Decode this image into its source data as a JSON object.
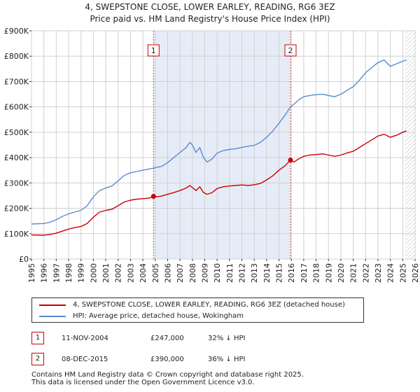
{
  "title_line1": "4, SWEPSTONE CLOSE, LOWER EARLEY, READING, RG6 3EZ",
  "title_line2": "Price paid vs. HM Land Registry's House Price Index (HPI)",
  "chart_data": {
    "type": "line",
    "title": "4, SWEPSTONE CLOSE, LOWER EARLEY, READING, RG6 3EZ — Price paid vs. HM Land Registry's House Price Index (HPI)",
    "xlim": [
      1995,
      2026
    ],
    "ylim": [
      0,
      900000
    ],
    "yticks": [
      {
        "value": 0,
        "label": "£0"
      },
      {
        "value": 100000,
        "label": "£100K"
      },
      {
        "value": 200000,
        "label": "£200K"
      },
      {
        "value": 300000,
        "label": "£300K"
      },
      {
        "value": 400000,
        "label": "£400K"
      },
      {
        "value": 500000,
        "label": "£500K"
      },
      {
        "value": 600000,
        "label": "£600K"
      },
      {
        "value": 700000,
        "label": "£700K"
      },
      {
        "value": 800000,
        "label": "£800K"
      },
      {
        "value": 900000,
        "label": "£900K"
      }
    ],
    "xticks": [
      "1995",
      "1996",
      "1997",
      "1998",
      "1999",
      "2000",
      "2001",
      "2002",
      "2003",
      "2004",
      "2005",
      "2006",
      "2007",
      "2008",
      "2009",
      "2010",
      "2011",
      "2012",
      "2013",
      "2014",
      "2015",
      "2016",
      "2017",
      "2018",
      "2019",
      "2020",
      "2021",
      "2022",
      "2023",
      "2024",
      "2025",
      "2026"
    ],
    "shaded_range": [
      2004.86,
      2015.93
    ],
    "future_hatch_from": 2025.2,
    "series": [
      {
        "name": "4, SWEPSTONE CLOSE, LOWER EARLEY, READING, RG6 3EZ (detached house)",
        "color": "#cc0000",
        "points": [
          [
            1995.0,
            95000
          ],
          [
            1996.0,
            94000
          ],
          [
            1996.5,
            97000
          ],
          [
            1997.0,
            102000
          ],
          [
            1997.5,
            110000
          ],
          [
            1998.0,
            118000
          ],
          [
            1998.5,
            124000
          ],
          [
            1999.0,
            128000
          ],
          [
            1999.5,
            140000
          ],
          [
            2000.0,
            165000
          ],
          [
            2000.5,
            185000
          ],
          [
            2001.0,
            192000
          ],
          [
            2001.5,
            196000
          ],
          [
            2002.0,
            210000
          ],
          [
            2002.5,
            225000
          ],
          [
            2003.0,
            232000
          ],
          [
            2003.5,
            236000
          ],
          [
            2004.0,
            238000
          ],
          [
            2004.5,
            240000
          ],
          [
            2004.86,
            247000
          ],
          [
            2005.0,
            245000
          ],
          [
            2005.5,
            248000
          ],
          [
            2006.0,
            255000
          ],
          [
            2006.5,
            262000
          ],
          [
            2007.0,
            270000
          ],
          [
            2007.5,
            280000
          ],
          [
            2007.8,
            290000
          ],
          [
            2008.0,
            282000
          ],
          [
            2008.3,
            270000
          ],
          [
            2008.6,
            285000
          ],
          [
            2008.9,
            262000
          ],
          [
            2009.2,
            255000
          ],
          [
            2009.6,
            262000
          ],
          [
            2010.0,
            278000
          ],
          [
            2010.5,
            285000
          ],
          [
            2011.0,
            288000
          ],
          [
            2011.5,
            290000
          ],
          [
            2012.0,
            292000
          ],
          [
            2012.5,
            290000
          ],
          [
            2013.0,
            293000
          ],
          [
            2013.5,
            298000
          ],
          [
            2014.0,
            312000
          ],
          [
            2014.5,
            328000
          ],
          [
            2015.0,
            350000
          ],
          [
            2015.5,
            368000
          ],
          [
            2015.93,
            390000
          ],
          [
            2016.2,
            382000
          ],
          [
            2016.6,
            395000
          ],
          [
            2017.0,
            405000
          ],
          [
            2017.5,
            410000
          ],
          [
            2018.0,
            412000
          ],
          [
            2018.5,
            415000
          ],
          [
            2019.0,
            410000
          ],
          [
            2019.5,
            405000
          ],
          [
            2020.0,
            410000
          ],
          [
            2020.5,
            418000
          ],
          [
            2021.0,
            425000
          ],
          [
            2021.5,
            440000
          ],
          [
            2022.0,
            455000
          ],
          [
            2022.5,
            470000
          ],
          [
            2023.0,
            485000
          ],
          [
            2023.5,
            492000
          ],
          [
            2024.0,
            480000
          ],
          [
            2024.5,
            488000
          ],
          [
            2025.0,
            500000
          ],
          [
            2025.3,
            505000
          ]
        ]
      },
      {
        "name": "HPI: Average price, detached house, Wokingham",
        "color": "#5b8bd0",
        "points": [
          [
            1995.0,
            138000
          ],
          [
            1996.0,
            140000
          ],
          [
            1996.5,
            145000
          ],
          [
            1997.0,
            155000
          ],
          [
            1997.5,
            168000
          ],
          [
            1998.0,
            178000
          ],
          [
            1998.5,
            185000
          ],
          [
            1999.0,
            192000
          ],
          [
            1999.5,
            210000
          ],
          [
            2000.0,
            245000
          ],
          [
            2000.5,
            270000
          ],
          [
            2001.0,
            280000
          ],
          [
            2001.5,
            288000
          ],
          [
            2002.0,
            308000
          ],
          [
            2002.5,
            330000
          ],
          [
            2003.0,
            340000
          ],
          [
            2003.5,
            345000
          ],
          [
            2004.0,
            350000
          ],
          [
            2004.5,
            355000
          ],
          [
            2005.0,
            360000
          ],
          [
            2005.5,
            365000
          ],
          [
            2006.0,
            380000
          ],
          [
            2006.5,
            400000
          ],
          [
            2007.0,
            420000
          ],
          [
            2007.5,
            440000
          ],
          [
            2007.8,
            460000
          ],
          [
            2008.0,
            450000
          ],
          [
            2008.3,
            420000
          ],
          [
            2008.6,
            440000
          ],
          [
            2008.9,
            400000
          ],
          [
            2009.2,
            382000
          ],
          [
            2009.6,
            395000
          ],
          [
            2010.0,
            418000
          ],
          [
            2010.5,
            428000
          ],
          [
            2011.0,
            432000
          ],
          [
            2011.5,
            435000
          ],
          [
            2012.0,
            440000
          ],
          [
            2012.5,
            445000
          ],
          [
            2013.0,
            448000
          ],
          [
            2013.5,
            460000
          ],
          [
            2014.0,
            480000
          ],
          [
            2014.5,
            505000
          ],
          [
            2015.0,
            535000
          ],
          [
            2015.5,
            568000
          ],
          [
            2015.93,
            600000
          ],
          [
            2016.2,
            610000
          ],
          [
            2016.6,
            628000
          ],
          [
            2017.0,
            640000
          ],
          [
            2017.5,
            645000
          ],
          [
            2018.0,
            648000
          ],
          [
            2018.5,
            650000
          ],
          [
            2019.0,
            645000
          ],
          [
            2019.5,
            640000
          ],
          [
            2020.0,
            650000
          ],
          [
            2020.5,
            665000
          ],
          [
            2021.0,
            680000
          ],
          [
            2021.5,
            705000
          ],
          [
            2022.0,
            735000
          ],
          [
            2022.5,
            755000
          ],
          [
            2023.0,
            775000
          ],
          [
            2023.5,
            785000
          ],
          [
            2024.0,
            760000
          ],
          [
            2024.5,
            770000
          ],
          [
            2025.0,
            780000
          ],
          [
            2025.3,
            785000
          ]
        ]
      }
    ],
    "markers": [
      {
        "label": "1",
        "x": 2004.86,
        "y": 247000
      },
      {
        "label": "2",
        "x": 2015.93,
        "y": 390000
      }
    ]
  },
  "legend": {
    "items": [
      {
        "label": "4, SWEPSTONE CLOSE, LOWER EARLEY, READING, RG6 3EZ (detached house)",
        "color": "#cc0000"
      },
      {
        "label": "HPI: Average price, detached house, Wokingham",
        "color": "#5b8bd0"
      }
    ]
  },
  "transactions": [
    {
      "num": "1",
      "date": "11-NOV-2004",
      "price": "£247,000",
      "hpi": "32% ↓ HPI"
    },
    {
      "num": "2",
      "date": "08-DEC-2015",
      "price": "£390,000",
      "hpi": "36% ↓ HPI"
    }
  ],
  "footer": {
    "line1": "Contains HM Land Registry data © Crown copyright and database right 2025.",
    "line2": "This data is licensed under the Open Government Licence v3.0."
  }
}
